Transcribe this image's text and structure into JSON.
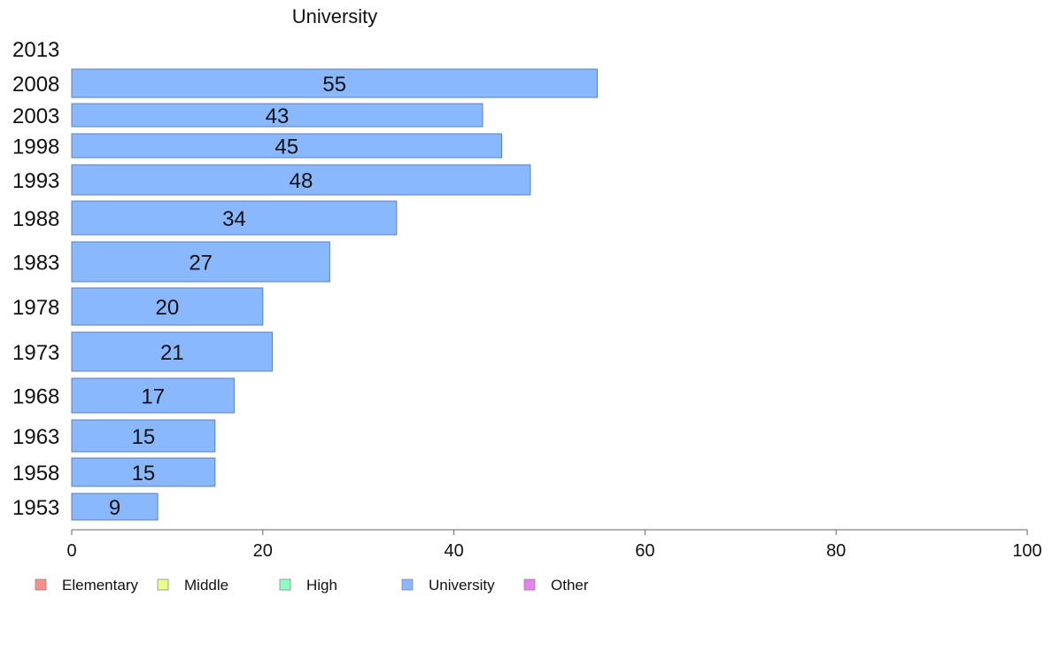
{
  "chart_data": {
    "type": "bar",
    "orientation": "horizontal",
    "title": "University",
    "categories": [
      "2013",
      "2008",
      "2003",
      "1998",
      "1993",
      "1988",
      "1983",
      "1978",
      "1973",
      "1968",
      "1963",
      "1958",
      "1953"
    ],
    "series": [
      {
        "name": "University",
        "color": "#8ab8ff",
        "values": [
          null,
          55,
          43,
          45,
          48,
          34,
          27,
          20,
          21,
          17,
          15,
          15,
          9
        ],
        "data_labels": [
          "",
          "55",
          "43",
          "45",
          "48",
          "34",
          "27",
          "20",
          "21",
          "17",
          "15",
          "15",
          "9"
        ]
      }
    ],
    "xlim": [
      0,
      100
    ],
    "x_ticks": [
      "0",
      "20",
      "40",
      "60",
      "80",
      "100"
    ],
    "grid": false,
    "legend": {
      "placement": "bottom-left",
      "entries": [
        {
          "label": "Elementary",
          "color": "#f8908a"
        },
        {
          "label": "Middle",
          "color": "#eaff8a"
        },
        {
          "label": "High",
          "color": "#8affc0"
        },
        {
          "label": "University",
          "color": "#8ab8ff"
        },
        {
          "label": "Other",
          "color": "#e980f0"
        }
      ]
    }
  }
}
